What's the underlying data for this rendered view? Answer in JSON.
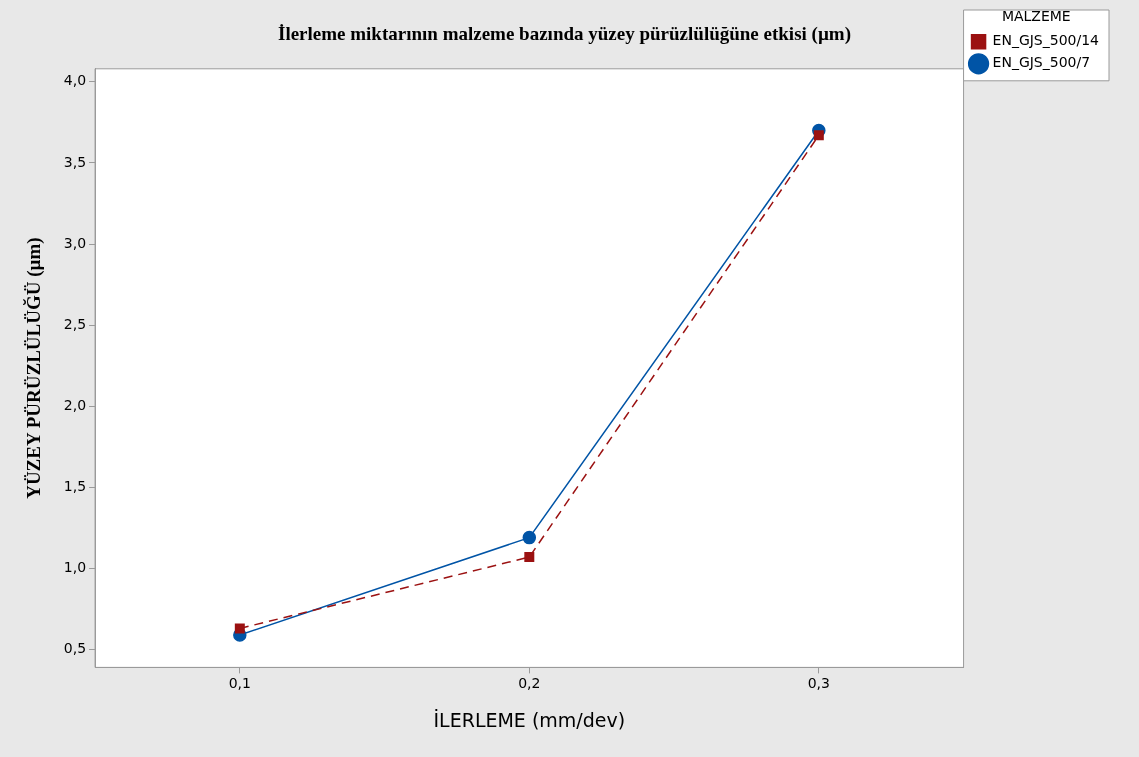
{
  "chart_data": {
    "type": "line",
    "title": "İlerleme miktarının malzeme bazında yüzey pürüzlülüğüne etkisi (µm)",
    "xlabel": "İLERLEME (mm/dev)",
    "ylabel": "YÜZEY PÜRÜZLÜLÜĞÜ (µm)",
    "legend_title": "MALZEME",
    "legend": "top right",
    "grid": false,
    "x": [
      0.1,
      0.2,
      0.3
    ],
    "xlim": [
      0.05,
      0.35
    ],
    "xticks": [
      {
        "value": 0.1,
        "label": "0,1"
      },
      {
        "value": 0.2,
        "label": "0,2"
      },
      {
        "value": 0.3,
        "label": "0,3"
      }
    ],
    "ylim": [
      0.39,
      4.08
    ],
    "yticks": [
      {
        "value": 0.5,
        "label": "0,5"
      },
      {
        "value": 1.0,
        "label": "1,0"
      },
      {
        "value": 1.5,
        "label": "1,5"
      },
      {
        "value": 2.0,
        "label": "2,0"
      },
      {
        "value": 2.5,
        "label": "2,5"
      },
      {
        "value": 3.0,
        "label": "3,0"
      },
      {
        "value": 3.5,
        "label": "3,5"
      },
      {
        "value": 4.0,
        "label": "4,0"
      }
    ],
    "series": [
      {
        "name": "EN_GJS_500/7",
        "color": "#0054a6",
        "values": [
          0.59,
          1.19,
          3.7
        ],
        "marker": "circle",
        "line_style": "solid"
      },
      {
        "name": "EN_GJS_500/14",
        "color": "#9b1111",
        "values": [
          0.63,
          1.07,
          3.67
        ],
        "marker": "square",
        "line_style": "dashed"
      }
    ]
  }
}
